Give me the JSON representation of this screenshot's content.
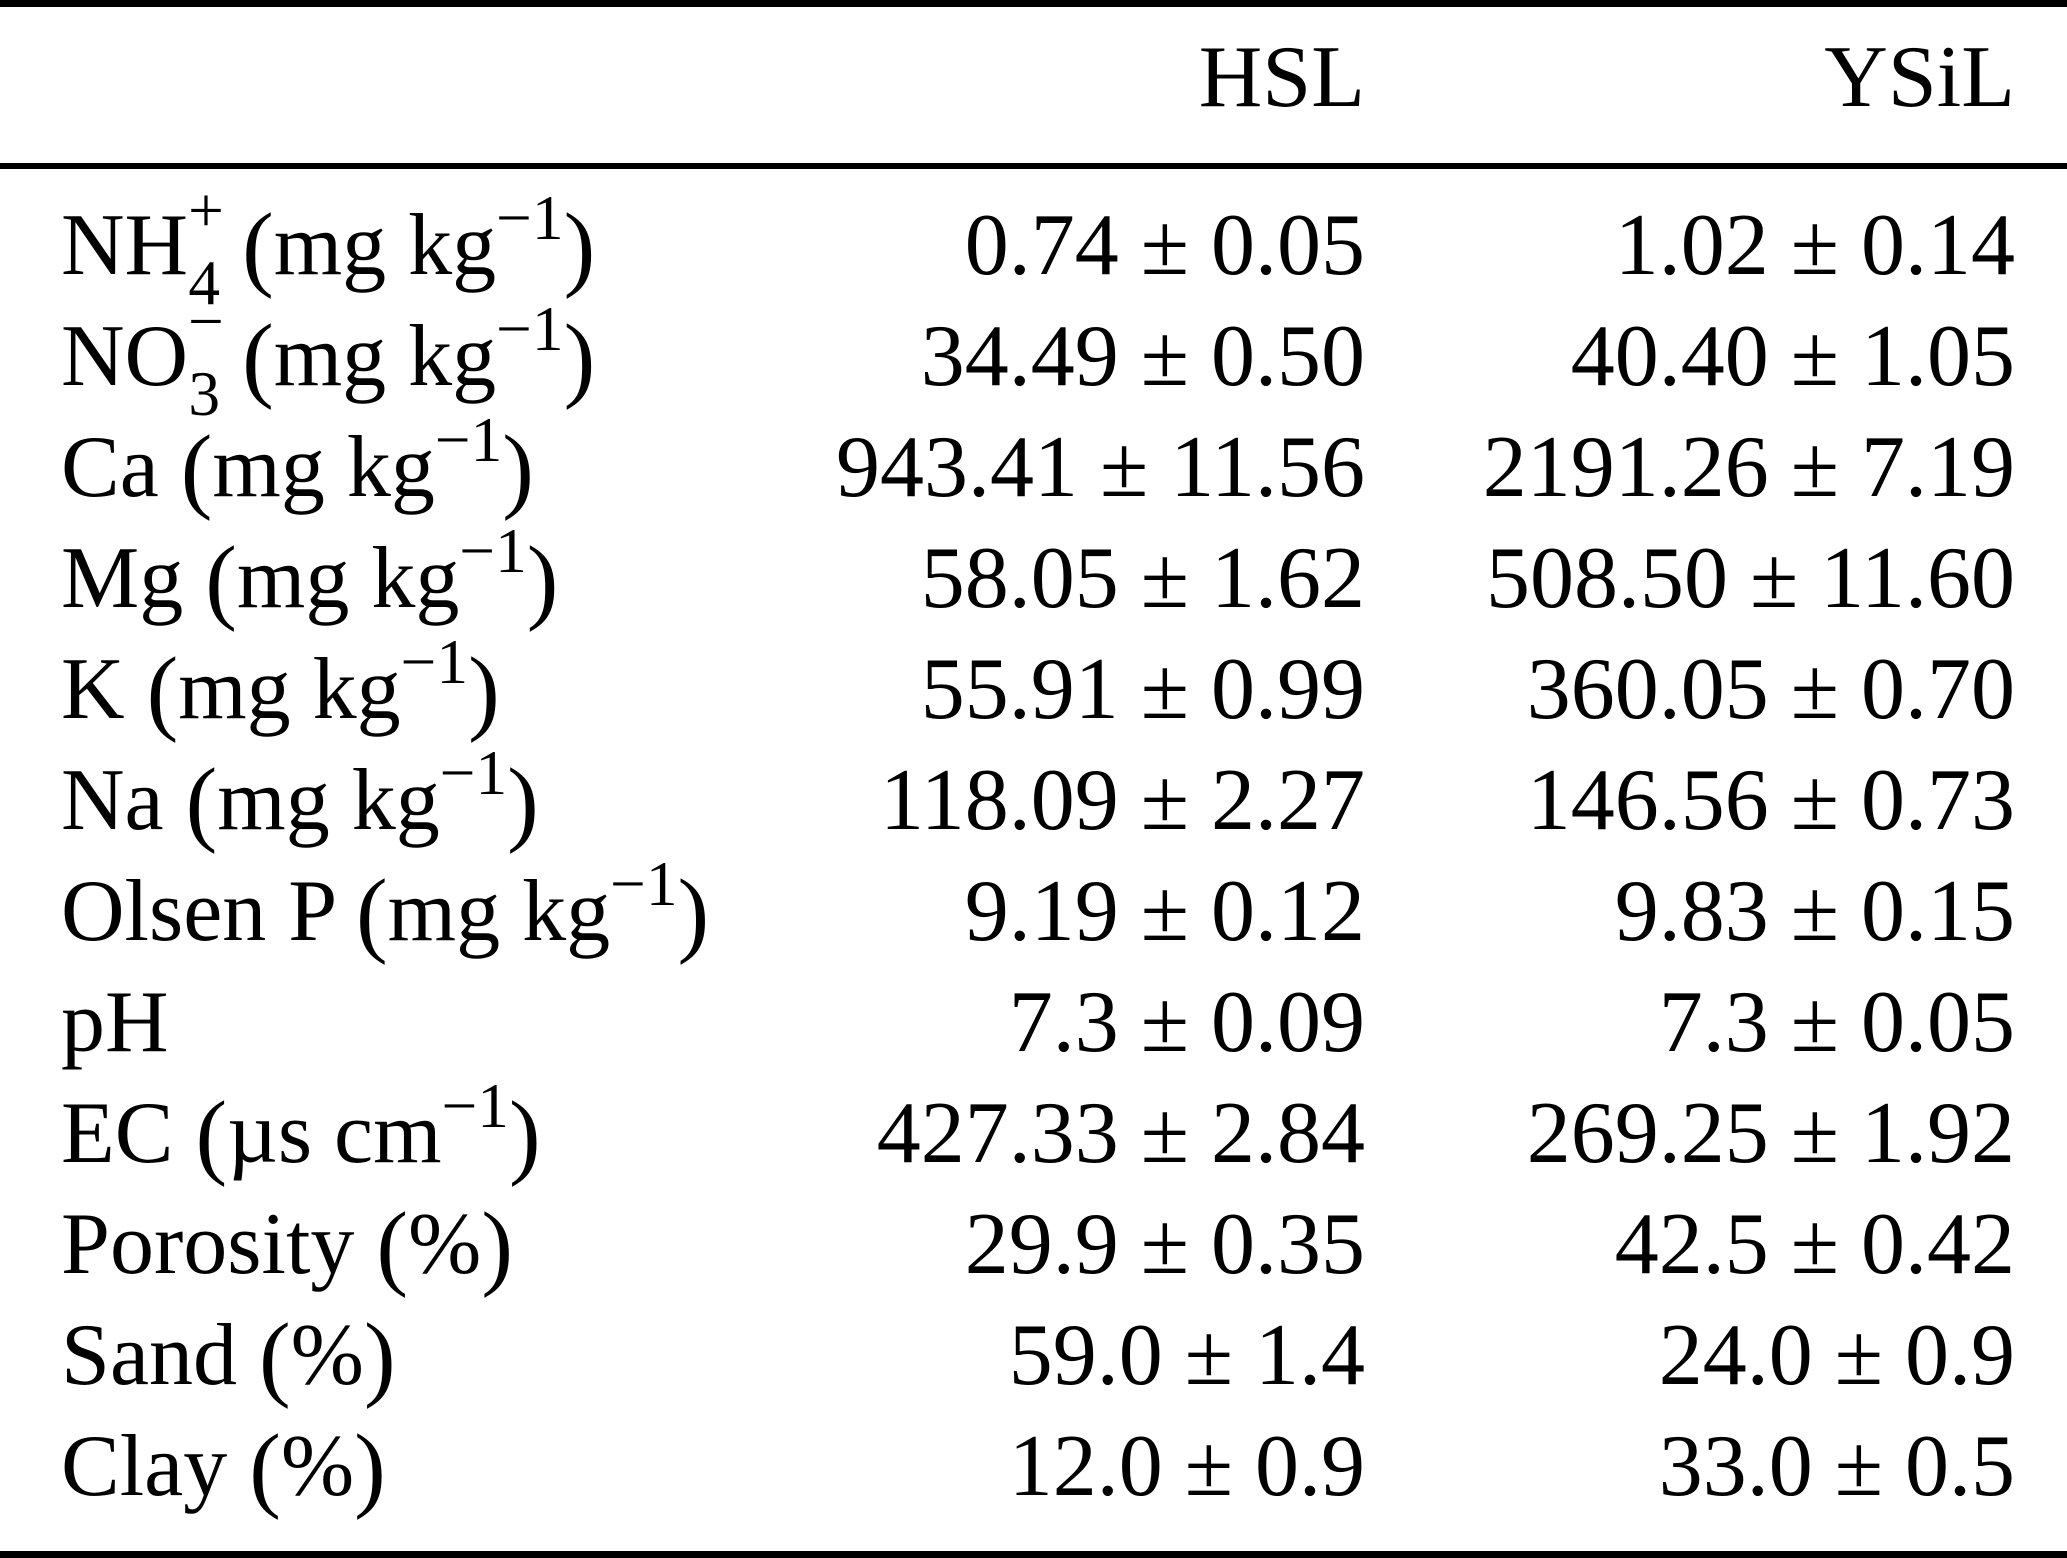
{
  "table": {
    "header": {
      "label": "",
      "hsl": "HSL",
      "ysil": "YSiL"
    },
    "rows": [
      {
        "label_parts": [
          {
            "type": "text",
            "text": "NH"
          },
          {
            "type": "stack",
            "top": "+",
            "bottom": "4"
          },
          {
            "type": "text",
            "text": " "
          },
          {
            "type": "paren",
            "text": "("
          },
          {
            "type": "text",
            "text": "mg kg"
          },
          {
            "type": "sup",
            "text": "−1"
          },
          {
            "type": "paren",
            "text": ")"
          }
        ],
        "hsl": "0.74 ± 0.05",
        "ysil": "1.02 ± 0.14"
      },
      {
        "label_parts": [
          {
            "type": "text",
            "text": "NO"
          },
          {
            "type": "stack",
            "top": "−",
            "bottom": "3"
          },
          {
            "type": "text",
            "text": " "
          },
          {
            "type": "paren",
            "text": "("
          },
          {
            "type": "text",
            "text": "mg kg"
          },
          {
            "type": "sup",
            "text": "−1"
          },
          {
            "type": "paren",
            "text": ")"
          }
        ],
        "hsl": "34.49 ± 0.50",
        "ysil": "40.40 ± 1.05"
      },
      {
        "label_parts": [
          {
            "type": "text",
            "text": "Ca "
          },
          {
            "type": "paren",
            "text": "("
          },
          {
            "type": "text",
            "text": "mg kg"
          },
          {
            "type": "sup",
            "text": "−1"
          },
          {
            "type": "paren",
            "text": ")"
          }
        ],
        "hsl": "943.41 ± 11.56",
        "ysil": "2191.26 ± 7.19"
      },
      {
        "label_parts": [
          {
            "type": "text",
            "text": "Mg "
          },
          {
            "type": "paren",
            "text": "("
          },
          {
            "type": "text",
            "text": "mg kg"
          },
          {
            "type": "sup",
            "text": "−1"
          },
          {
            "type": "paren",
            "text": ")"
          }
        ],
        "hsl": "58.05 ± 1.62",
        "ysil": "508.50 ± 11.60"
      },
      {
        "label_parts": [
          {
            "type": "text",
            "text": "K "
          },
          {
            "type": "paren",
            "text": "("
          },
          {
            "type": "text",
            "text": "mg kg"
          },
          {
            "type": "sup",
            "text": "−1"
          },
          {
            "type": "paren",
            "text": ")"
          }
        ],
        "hsl": "55.91 ± 0.99",
        "ysil": "360.05 ± 0.70"
      },
      {
        "label_parts": [
          {
            "type": "text",
            "text": "Na "
          },
          {
            "type": "paren",
            "text": "("
          },
          {
            "type": "text",
            "text": "mg kg"
          },
          {
            "type": "sup",
            "text": "−1"
          },
          {
            "type": "paren",
            "text": ")"
          }
        ],
        "hsl": "118.09 ± 2.27",
        "ysil": "146.56 ± 0.73"
      },
      {
        "label_parts": [
          {
            "type": "text",
            "text": "Olsen P "
          },
          {
            "type": "paren",
            "text": "("
          },
          {
            "type": "text",
            "text": "mg kg"
          },
          {
            "type": "sup",
            "text": "−1"
          },
          {
            "type": "paren",
            "text": ")"
          }
        ],
        "hsl": "9.19 ± 0.12",
        "ysil": "9.83 ± 0.15"
      },
      {
        "label_parts": [
          {
            "type": "text",
            "text": "pH"
          }
        ],
        "hsl": "7.3 ± 0.09",
        "ysil": "7.3 ± 0.05"
      },
      {
        "label_parts": [
          {
            "type": "text",
            "text": "EC "
          },
          {
            "type": "paren",
            "text": "("
          },
          {
            "type": "text",
            "text": "µs cm"
          },
          {
            "type": "sup",
            "text": "−1"
          },
          {
            "type": "paren",
            "text": ")"
          }
        ],
        "hsl": "427.33 ± 2.84",
        "ysil": "269.25 ± 1.92"
      },
      {
        "label_parts": [
          {
            "type": "text",
            "text": "Porosity "
          },
          {
            "type": "paren",
            "text": "("
          },
          {
            "type": "text",
            "text": "%"
          },
          {
            "type": "paren",
            "text": ")"
          }
        ],
        "hsl": "29.9 ± 0.35",
        "ysil": "42.5 ± 0.42"
      },
      {
        "label_parts": [
          {
            "type": "text",
            "text": "Sand "
          },
          {
            "type": "paren",
            "text": "("
          },
          {
            "type": "text",
            "text": "%"
          },
          {
            "type": "paren",
            "text": ")"
          }
        ],
        "hsl": "59.0 ± 1.4",
        "ysil": "24.0 ± 0.9"
      },
      {
        "label_parts": [
          {
            "type": "text",
            "text": "Clay "
          },
          {
            "type": "paren",
            "text": "("
          },
          {
            "type": "text",
            "text": "%"
          },
          {
            "type": "paren",
            "text": ")"
          }
        ],
        "hsl": "12.0 ± 0.9",
        "ysil": "33.0 ± 0.5"
      }
    ]
  },
  "colors": {
    "text": "#000000",
    "background": "#ffffff",
    "rule": "#000000"
  }
}
